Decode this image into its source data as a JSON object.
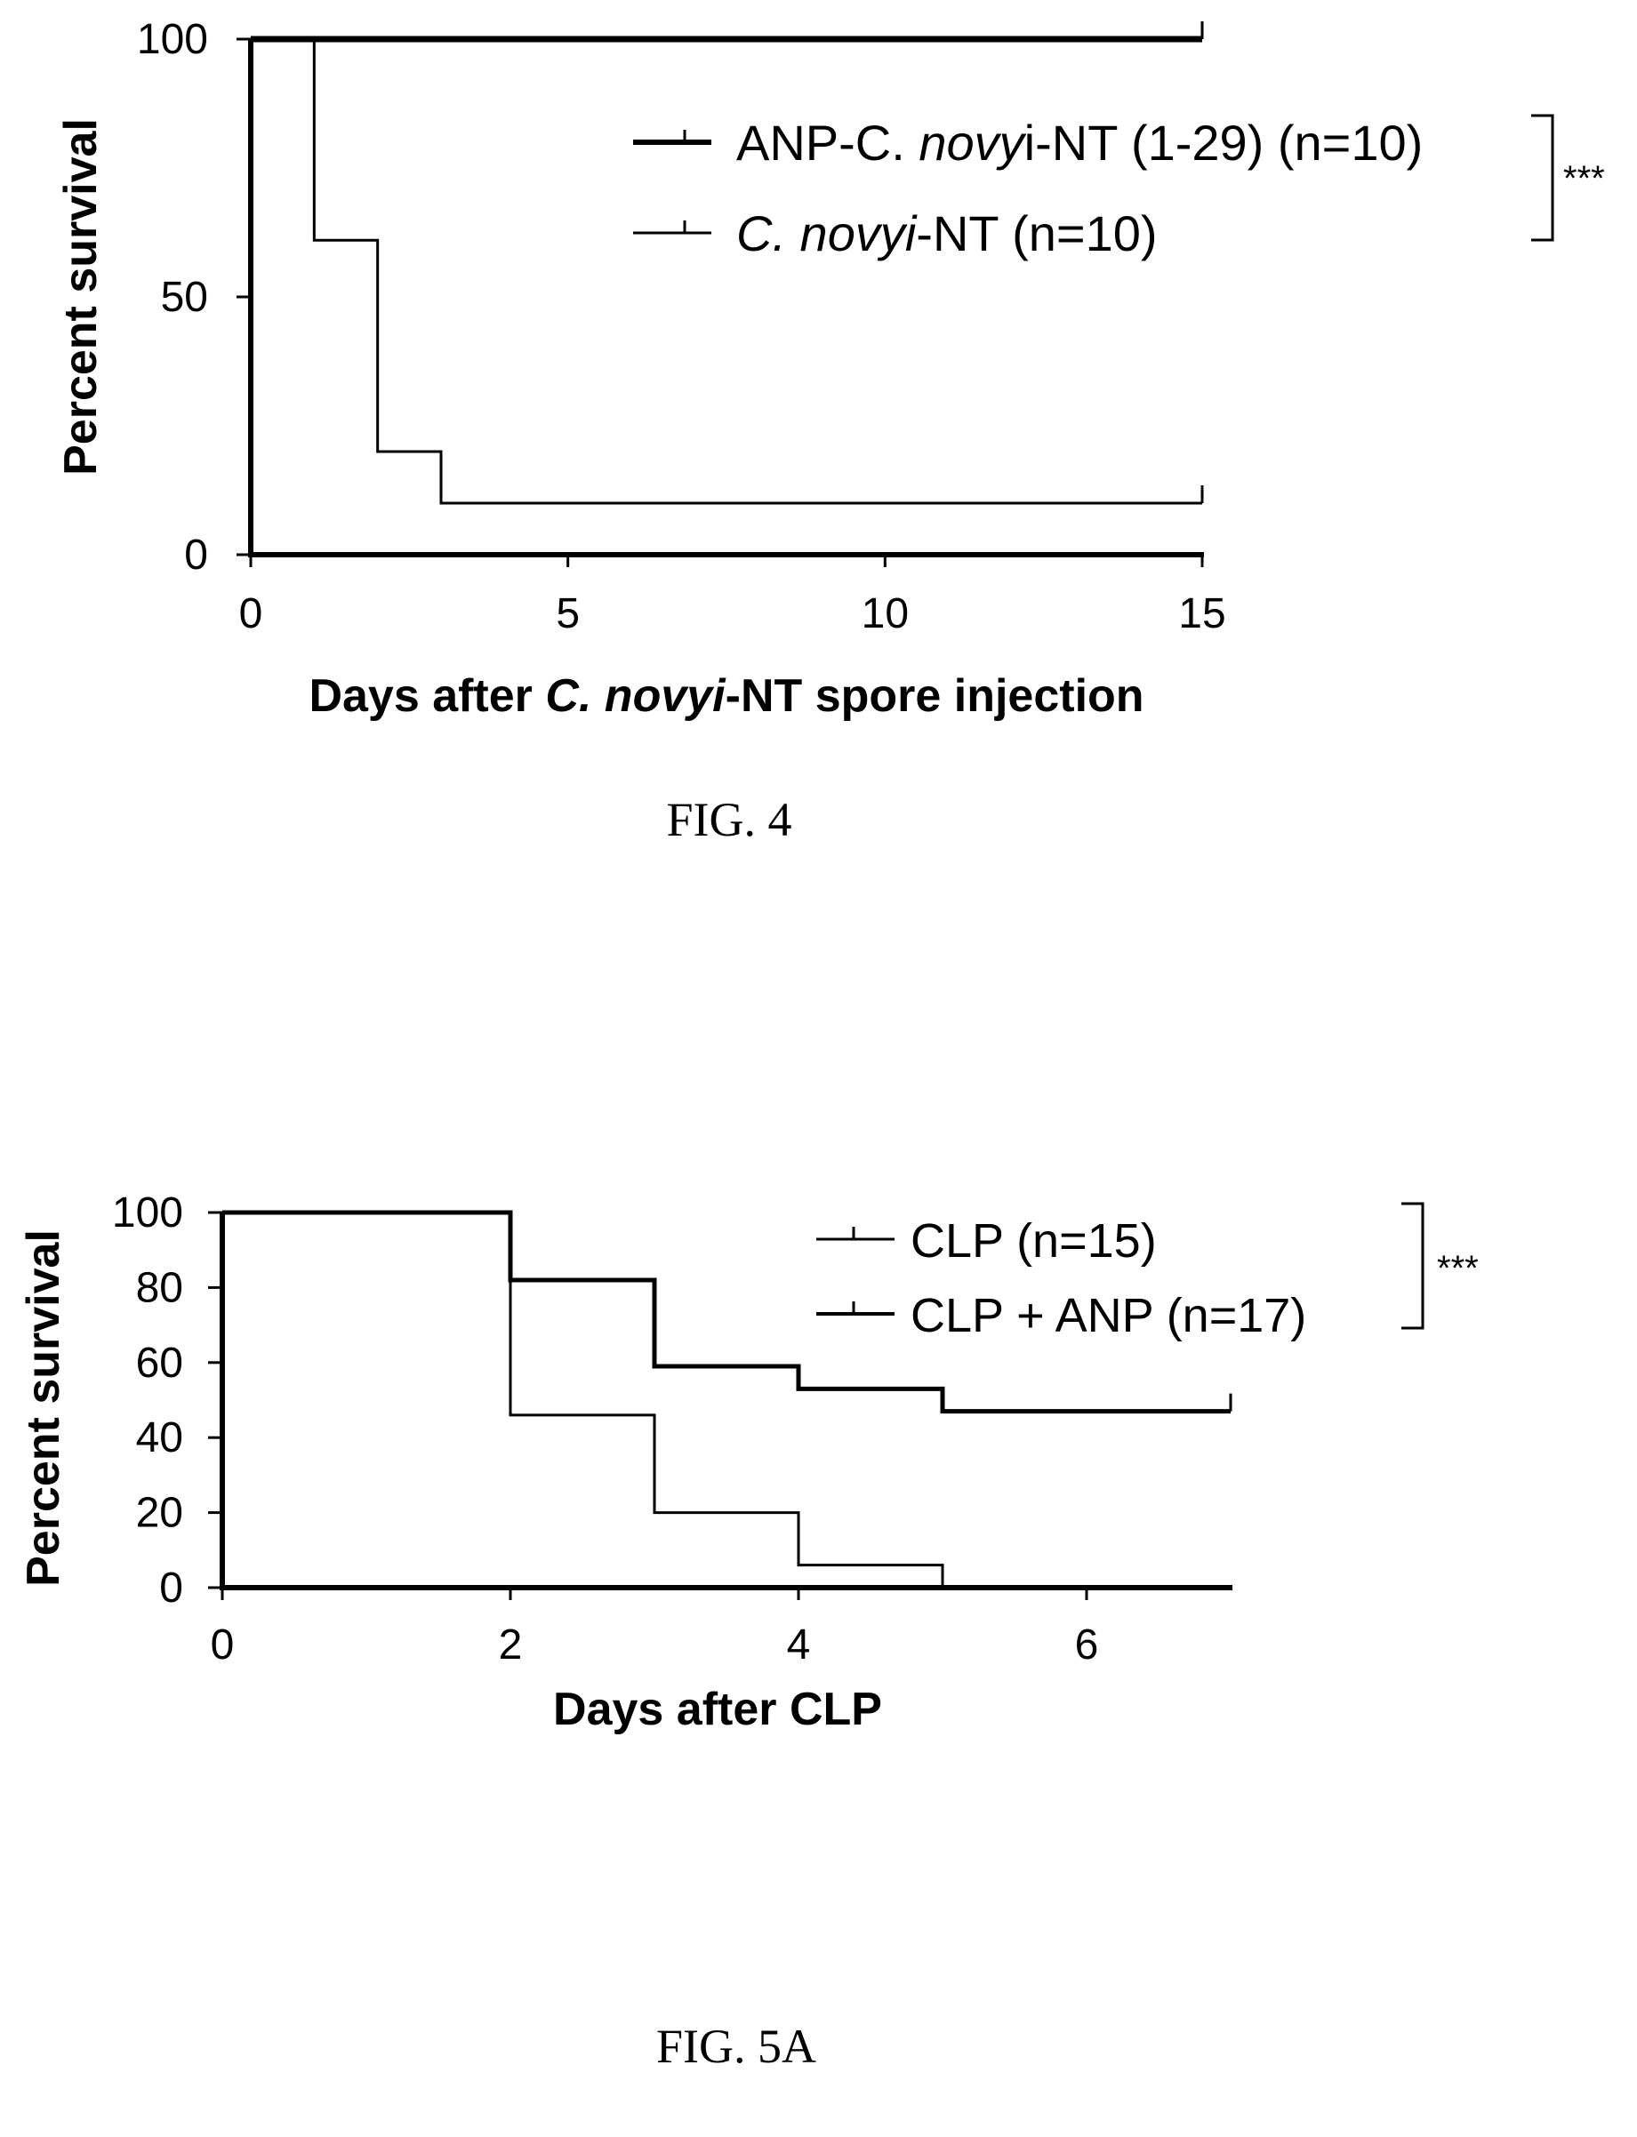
{
  "figures": [
    {
      "caption": "FIG. 4",
      "significance": "***",
      "ylabel": "Percent survival",
      "xlabel_parts": [
        {
          "text": "Days after ",
          "italic": false
        },
        {
          "text": "C. novyi",
          "italic": true
        },
        {
          "text": "-NT spore injection",
          "italic": false
        }
      ],
      "legend": [
        {
          "parts": [
            {
              "text": "ANP-C. ",
              "italic": false
            },
            {
              "text": "novy",
              "italic": true
            },
            {
              "text": "i-NT (1-29) (n=10)",
              "italic": false
            }
          ]
        },
        {
          "parts": [
            {
              "text": "C. novyi",
              "italic": true
            },
            {
              "text": "-NT (n=10)",
              "italic": false
            }
          ]
        }
      ]
    },
    {
      "caption": "FIG. 5A",
      "significance": "***",
      "ylabel": "Percent survival",
      "xlabel_parts": [
        {
          "text": "Days after CLP",
          "italic": false
        }
      ],
      "legend": [
        {
          "parts": [
            {
              "text": "CLP (n=15)",
              "italic": false
            }
          ]
        },
        {
          "parts": [
            {
              "text": "CLP + ANP (n=17)",
              "italic": false
            }
          ]
        }
      ]
    }
  ],
  "chart_data": [
    {
      "type": "line",
      "step": true,
      "title": "",
      "xlabel": "Days after C. novyi-NT spore injection",
      "ylabel": "Percent survival",
      "xlim": [
        0,
        15
      ],
      "ylim": [
        0,
        100
      ],
      "xticks": [
        0,
        5,
        10,
        15
      ],
      "yticks": [
        0,
        50,
        100
      ],
      "grid": false,
      "legend_position": "top-right",
      "series": [
        {
          "name": "ANP-C. novyi-NT (1-29) (n=10)",
          "x": [
            0,
            15
          ],
          "y": [
            100,
            100
          ],
          "line": "thick"
        },
        {
          "name": "C. novyi-NT (n=10)",
          "x": [
            0,
            1,
            2,
            3,
            15
          ],
          "y": [
            100,
            61,
            20,
            10,
            10
          ],
          "line": "thin"
        }
      ]
    },
    {
      "type": "line",
      "step": true,
      "title": "",
      "xlabel": "Days after CLP",
      "ylabel": "Percent survival",
      "xlim": [
        0,
        7
      ],
      "ylim": [
        0,
        100
      ],
      "xticks": [
        0,
        2,
        4,
        6
      ],
      "yticks": [
        0,
        20,
        40,
        60,
        80,
        100
      ],
      "grid": false,
      "legend_position": "top-right",
      "series": [
        {
          "name": "CLP (n=15)",
          "x": [
            0,
            2,
            3,
            4,
            5,
            7
          ],
          "y": [
            100,
            46,
            20,
            6,
            0,
            0
          ],
          "line": "thin"
        },
        {
          "name": "CLP + ANP (n=17)",
          "x": [
            0,
            2,
            3,
            4,
            5,
            7
          ],
          "y": [
            100,
            82,
            59,
            53,
            47,
            47
          ],
          "line": "thick"
        }
      ]
    }
  ]
}
